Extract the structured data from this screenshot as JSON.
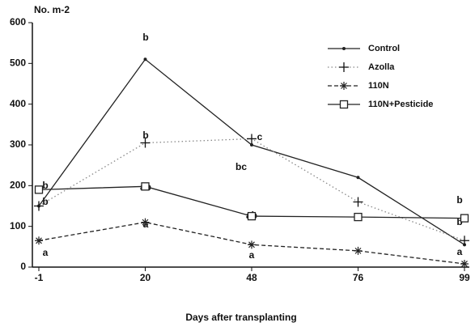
{
  "chart_data": {
    "type": "line",
    "y_axis_label": "No. m-2",
    "x_axis_label": "Days after transplanting",
    "categories": [
      "-1",
      "20",
      "48",
      "76",
      "99"
    ],
    "ylim": [
      0,
      600
    ],
    "yticks": [
      0,
      100,
      200,
      300,
      400,
      500,
      600
    ],
    "grid": false,
    "legend": "upper right",
    "series": [
      {
        "name": "Control",
        "color": "#222222",
        "style": "solid",
        "marker": "dot",
        "values": [
          150,
          510,
          300,
          220,
          55
        ]
      },
      {
        "name": "Azolla",
        "color": "#888888",
        "style": "dotted",
        "marker": "plus",
        "values": [
          150,
          305,
          315,
          160,
          65
        ]
      },
      {
        "name": "110N",
        "color": "#222222",
        "style": "dashed",
        "marker": "asterisk",
        "values": [
          65,
          110,
          55,
          40,
          8
        ]
      },
      {
        "name": "110N+Pesticide",
        "color": "#222222",
        "style": "solid",
        "marker": "square",
        "values": [
          190,
          198,
          125,
          123,
          120
        ]
      }
    ],
    "annotations": [
      "b",
      "b",
      "a",
      "b",
      "b",
      "ab",
      "a",
      "c",
      "bc",
      "ab",
      "a",
      "b",
      "b",
      "a"
    ]
  }
}
